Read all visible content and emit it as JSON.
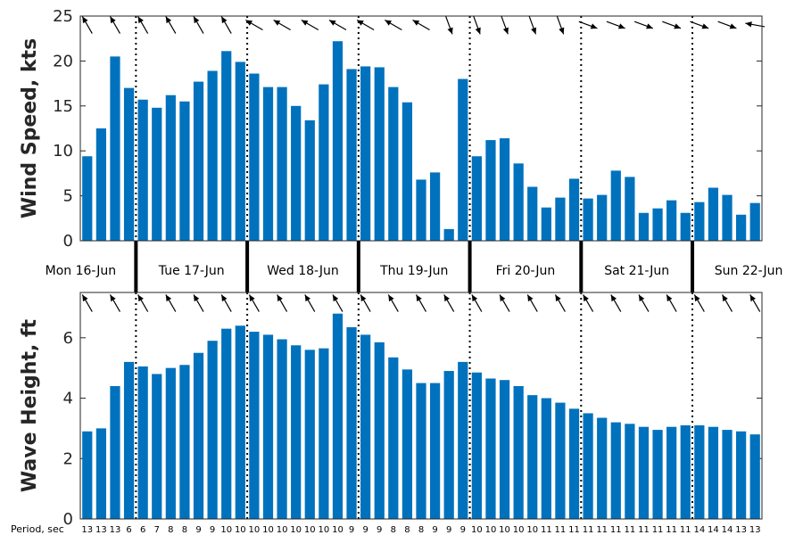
{
  "chart_data": [
    {
      "type": "bar",
      "ylabel": "Wind Speed, kts",
      "ylim": [
        0,
        25
      ],
      "yticks": [
        0,
        5,
        10,
        15,
        20,
        25
      ],
      "values": [
        9.4,
        12.5,
        20.5,
        17,
        15.7,
        14.8,
        16.2,
        15.5,
        17.7,
        18.9,
        21.1,
        19.9,
        18.6,
        17.1,
        17.1,
        15,
        13.4,
        17.4,
        22.2,
        19.1,
        19.4,
        19.3,
        17.1,
        15.4,
        6.8,
        7.6,
        1.3,
        18,
        9.4,
        11.2,
        11.4,
        8.6,
        6,
        3.7,
        4.8,
        6.9,
        4.7,
        5.1,
        7.8,
        7.1,
        3.1,
        3.6,
        4.5,
        3.1,
        4.3,
        5.9,
        5.1,
        2.9,
        4.2
      ],
      "direction_arrows_deg": [
        -30,
        -30,
        -30,
        -30,
        -30,
        -30,
        -30,
        -30,
        -30,
        -30,
        -30,
        -60,
        -60,
        -60,
        -60,
        -60,
        -60,
        -60,
        -60,
        -60,
        -60,
        -60,
        -60,
        -60,
        -60,
        160,
        160,
        160,
        160,
        160,
        160,
        160,
        160,
        160,
        160,
        160,
        110,
        110,
        110,
        110,
        110,
        110,
        110,
        110,
        110,
        110,
        110,
        -80,
        -80
      ]
    },
    {
      "type": "bar",
      "ylabel": "Wave Height, ft",
      "ylim": [
        0,
        7.5
      ],
      "yticks": [
        0,
        2,
        4,
        6
      ],
      "values": [
        2.9,
        3,
        4.4,
        5.2,
        5.05,
        4.8,
        5,
        5.1,
        5.5,
        5.9,
        6.3,
        6.4,
        6.2,
        6.1,
        5.95,
        5.75,
        5.6,
        5.65,
        6.8,
        6.35,
        6.1,
        5.85,
        5.35,
        4.95,
        4.5,
        4.5,
        4.9,
        5.2,
        4.85,
        4.65,
        4.6,
        4.4,
        4.1,
        4,
        3.85,
        3.65,
        3.5,
        3.35,
        3.2,
        3.15,
        3.05,
        2.95,
        3.05,
        3.1,
        3.1,
        3.05,
        2.95,
        2.9,
        2.8
      ],
      "direction_arrows_deg": [
        -30,
        -30,
        -30,
        -30,
        -30,
        -30,
        -30,
        -30,
        -30,
        -30,
        -30,
        -30,
        -30,
        -30,
        -30,
        -30,
        -30,
        -30,
        -30,
        -30,
        -30,
        -30,
        -30,
        -30,
        -30,
        -30,
        -30,
        -30,
        -30,
        -30,
        -30,
        -30,
        -30,
        -30,
        -30,
        -30,
        -30,
        -30,
        -30,
        -30,
        -30,
        -30,
        -30,
        -30,
        -30,
        -30,
        -30,
        -30,
        -30
      ],
      "period_label": "Period, sec",
      "periods": [
        "13",
        "13",
        "13",
        "6",
        "6",
        "7",
        "8",
        "8",
        "9",
        "9",
        "10",
        "10",
        "10",
        "10",
        "10",
        "10",
        "10",
        "10",
        "10",
        "9",
        "9",
        "9",
        "8",
        "8",
        "8",
        "9",
        "9",
        "9",
        "10",
        "10",
        "10",
        "10",
        "10",
        "11",
        "11",
        "11",
        "11",
        "11",
        "11",
        "11",
        "11",
        "11",
        "11",
        "11",
        "14",
        "14",
        "14",
        "13",
        "13"
      ]
    }
  ],
  "days": [
    "Mon 16-Jun",
    "Tue 17-Jun",
    "Wed 18-Jun",
    "Thu 19-Jun",
    "Fri 20-Jun",
    "Sat 21-Jun",
    "Sun 22-Jun"
  ]
}
